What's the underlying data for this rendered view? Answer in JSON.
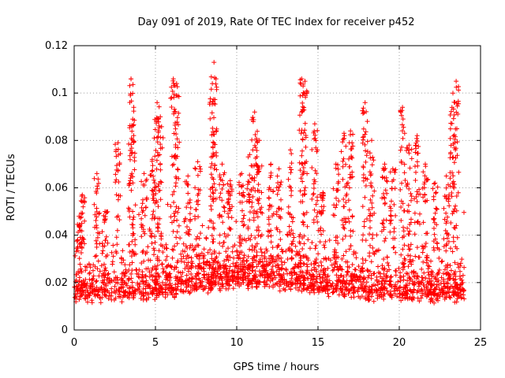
{
  "chart_data": {
    "type": "scatter",
    "title": "Day 091 of 2019, Rate Of TEC Index for receiver p452",
    "xlabel": "GPS time / hours",
    "ylabel": "ROTI / TECUs",
    "xlim": [
      0,
      25
    ],
    "ylim": [
      0,
      0.12
    ],
    "xticks": [
      "0",
      "5",
      "10",
      "15",
      "20",
      "25"
    ],
    "yticks": [
      "0",
      "0.02",
      "0.04",
      "0.06",
      "0.08",
      "0.1",
      "0.12"
    ],
    "grid": true,
    "marker": "+",
    "color": "#ff0000",
    "series": [
      {
        "name": "ROTI",
        "points_note": "dense cloud; baseline ~0.01-0.03 TECU across 0-24 h",
        "peaks": [
          {
            "x": 0.3,
            "y": 0.048
          },
          {
            "x": 0.5,
            "y": 0.057
          },
          {
            "x": 1.4,
            "y": 0.066
          },
          {
            "x": 1.9,
            "y": 0.05
          },
          {
            "x": 2.7,
            "y": 0.079
          },
          {
            "x": 3.5,
            "y": 0.106
          },
          {
            "x": 3.6,
            "y": 0.089
          },
          {
            "x": 4.3,
            "y": 0.066
          },
          {
            "x": 4.8,
            "y": 0.072
          },
          {
            "x": 5.1,
            "y": 0.096
          },
          {
            "x": 5.3,
            "y": 0.09
          },
          {
            "x": 6.1,
            "y": 0.106
          },
          {
            "x": 6.3,
            "y": 0.104
          },
          {
            "x": 7.0,
            "y": 0.065
          },
          {
            "x": 7.6,
            "y": 0.071
          },
          {
            "x": 8.6,
            "y": 0.113
          },
          {
            "x": 8.5,
            "y": 0.104
          },
          {
            "x": 9.1,
            "y": 0.07
          },
          {
            "x": 9.6,
            "y": 0.063
          },
          {
            "x": 10.3,
            "y": 0.066
          },
          {
            "x": 10.8,
            "y": 0.074
          },
          {
            "x": 11.1,
            "y": 0.092
          },
          {
            "x": 11.4,
            "y": 0.08
          },
          {
            "x": 12.1,
            "y": 0.07
          },
          {
            "x": 12.6,
            "y": 0.068
          },
          {
            "x": 13.3,
            "y": 0.076
          },
          {
            "x": 14.0,
            "y": 0.106
          },
          {
            "x": 14.2,
            "y": 0.105
          },
          {
            "x": 14.8,
            "y": 0.087
          },
          {
            "x": 15.3,
            "y": 0.058
          },
          {
            "x": 16.1,
            "y": 0.07
          },
          {
            "x": 16.6,
            "y": 0.083
          },
          {
            "x": 17.0,
            "y": 0.084
          },
          {
            "x": 17.9,
            "y": 0.096
          },
          {
            "x": 18.3,
            "y": 0.08
          },
          {
            "x": 19.1,
            "y": 0.07
          },
          {
            "x": 19.6,
            "y": 0.068
          },
          {
            "x": 20.2,
            "y": 0.094
          },
          {
            "x": 20.6,
            "y": 0.078
          },
          {
            "x": 21.1,
            "y": 0.082
          },
          {
            "x": 21.6,
            "y": 0.07
          },
          {
            "x": 22.2,
            "y": 0.062
          },
          {
            "x": 22.9,
            "y": 0.065
          },
          {
            "x": 23.3,
            "y": 0.1
          },
          {
            "x": 23.5,
            "y": 0.105
          }
        ]
      }
    ]
  }
}
